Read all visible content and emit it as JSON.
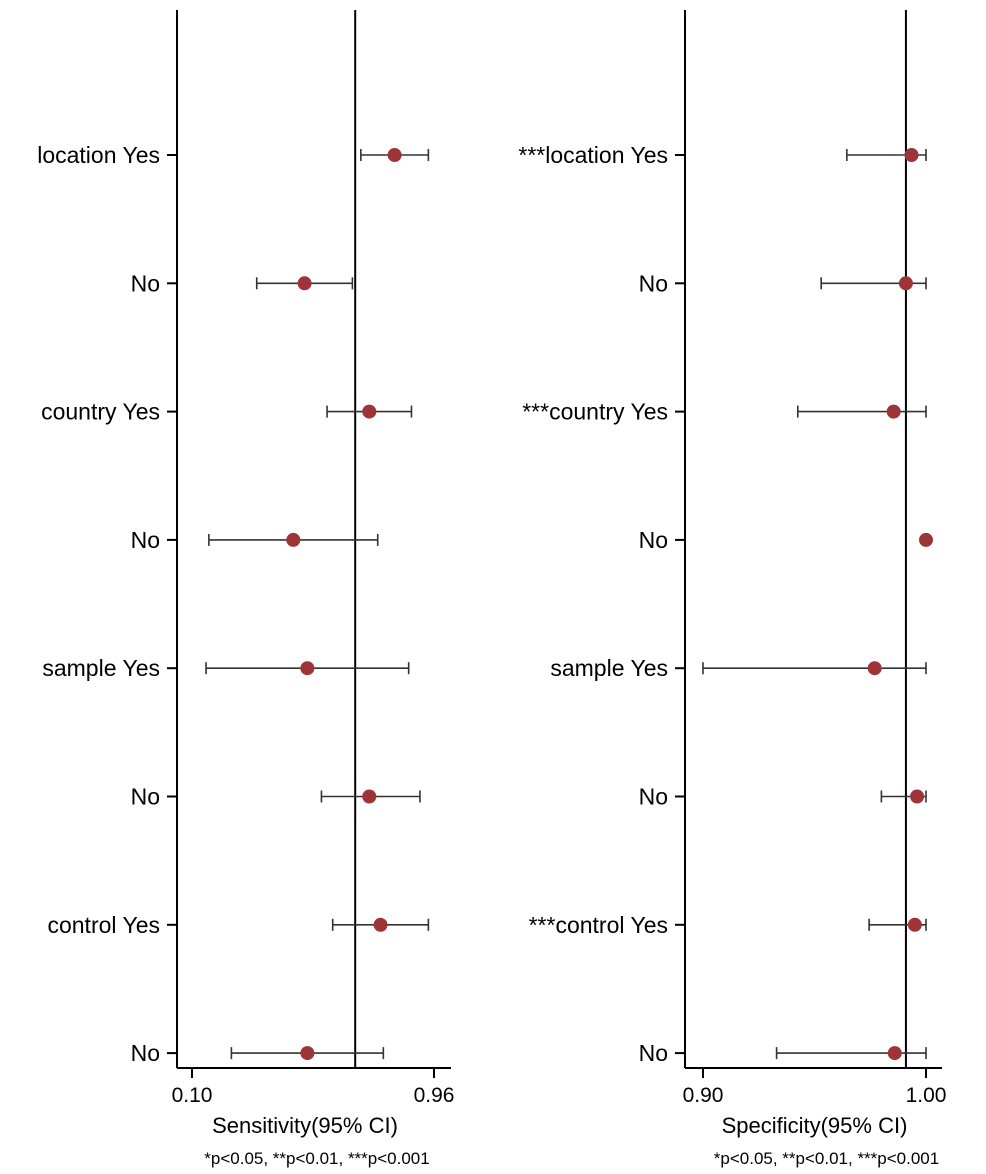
{
  "colors": {
    "marker": "#9e3438",
    "axis": "#000000",
    "whisker": "#333333"
  },
  "chart_data": [
    {
      "type": "forest",
      "xlabel": "Sensitivity(95% CI)",
      "footnote": "*p<0.05, **p<0.01, ***p<0.001",
      "xlim": [
        0.1,
        0.96
      ],
      "x_ticks": [
        0.1,
        0.96
      ],
      "x_tick_labels": [
        "0.10",
        "0.96"
      ],
      "reference_line": 0.68,
      "legend": "none",
      "grid": false,
      "rows": [
        {
          "label": "location Yes",
          "estimate": 0.82,
          "lower": 0.7,
          "upper": 0.94
        },
        {
          "label": "No",
          "estimate": 0.5,
          "lower": 0.33,
          "upper": 0.67
        },
        {
          "label": "country Yes",
          "estimate": 0.73,
          "lower": 0.58,
          "upper": 0.88
        },
        {
          "label": "No",
          "estimate": 0.46,
          "lower": 0.16,
          "upper": 0.76
        },
        {
          "label": "sample Yes",
          "estimate": 0.51,
          "lower": 0.15,
          "upper": 0.87
        },
        {
          "label": "No",
          "estimate": 0.73,
          "lower": 0.56,
          "upper": 0.91
        },
        {
          "label": "control Yes",
          "estimate": 0.77,
          "lower": 0.6,
          "upper": 0.94
        },
        {
          "label": "No",
          "estimate": 0.51,
          "lower": 0.24,
          "upper": 0.78
        }
      ]
    },
    {
      "type": "forest",
      "xlabel": "Specificity(95% CI)",
      "footnote": "*p<0.05, **p<0.01, ***p<0.001",
      "xlim": [
        0.9,
        1.0
      ],
      "x_ticks": [
        0.9,
        1.0
      ],
      "x_tick_labels": [
        "0.90",
        "1.00"
      ],
      "reference_line": 0.991,
      "legend": "none",
      "grid": false,
      "rows": [
        {
          "label": "***location Yes",
          "estimate": 0.9935,
          "lower": 0.9645,
          "upper": 1.0
        },
        {
          "label": "No",
          "estimate": 0.991,
          "lower": 0.953,
          "upper": 1.0
        },
        {
          "label": "***country Yes",
          "estimate": 0.9855,
          "lower": 0.9425,
          "upper": 1.0
        },
        {
          "label": "No",
          "estimate": 1.0,
          "lower": 1.0,
          "upper": 1.0
        },
        {
          "label": "sample Yes",
          "estimate": 0.977,
          "lower": 0.9,
          "upper": 1.0
        },
        {
          "label": "No",
          "estimate": 0.996,
          "lower": 0.98,
          "upper": 1.0
        },
        {
          "label": "***control Yes",
          "estimate": 0.995,
          "lower": 0.9745,
          "upper": 1.0
        },
        {
          "label": "No",
          "estimate": 0.986,
          "lower": 0.933,
          "upper": 1.0
        }
      ]
    }
  ]
}
